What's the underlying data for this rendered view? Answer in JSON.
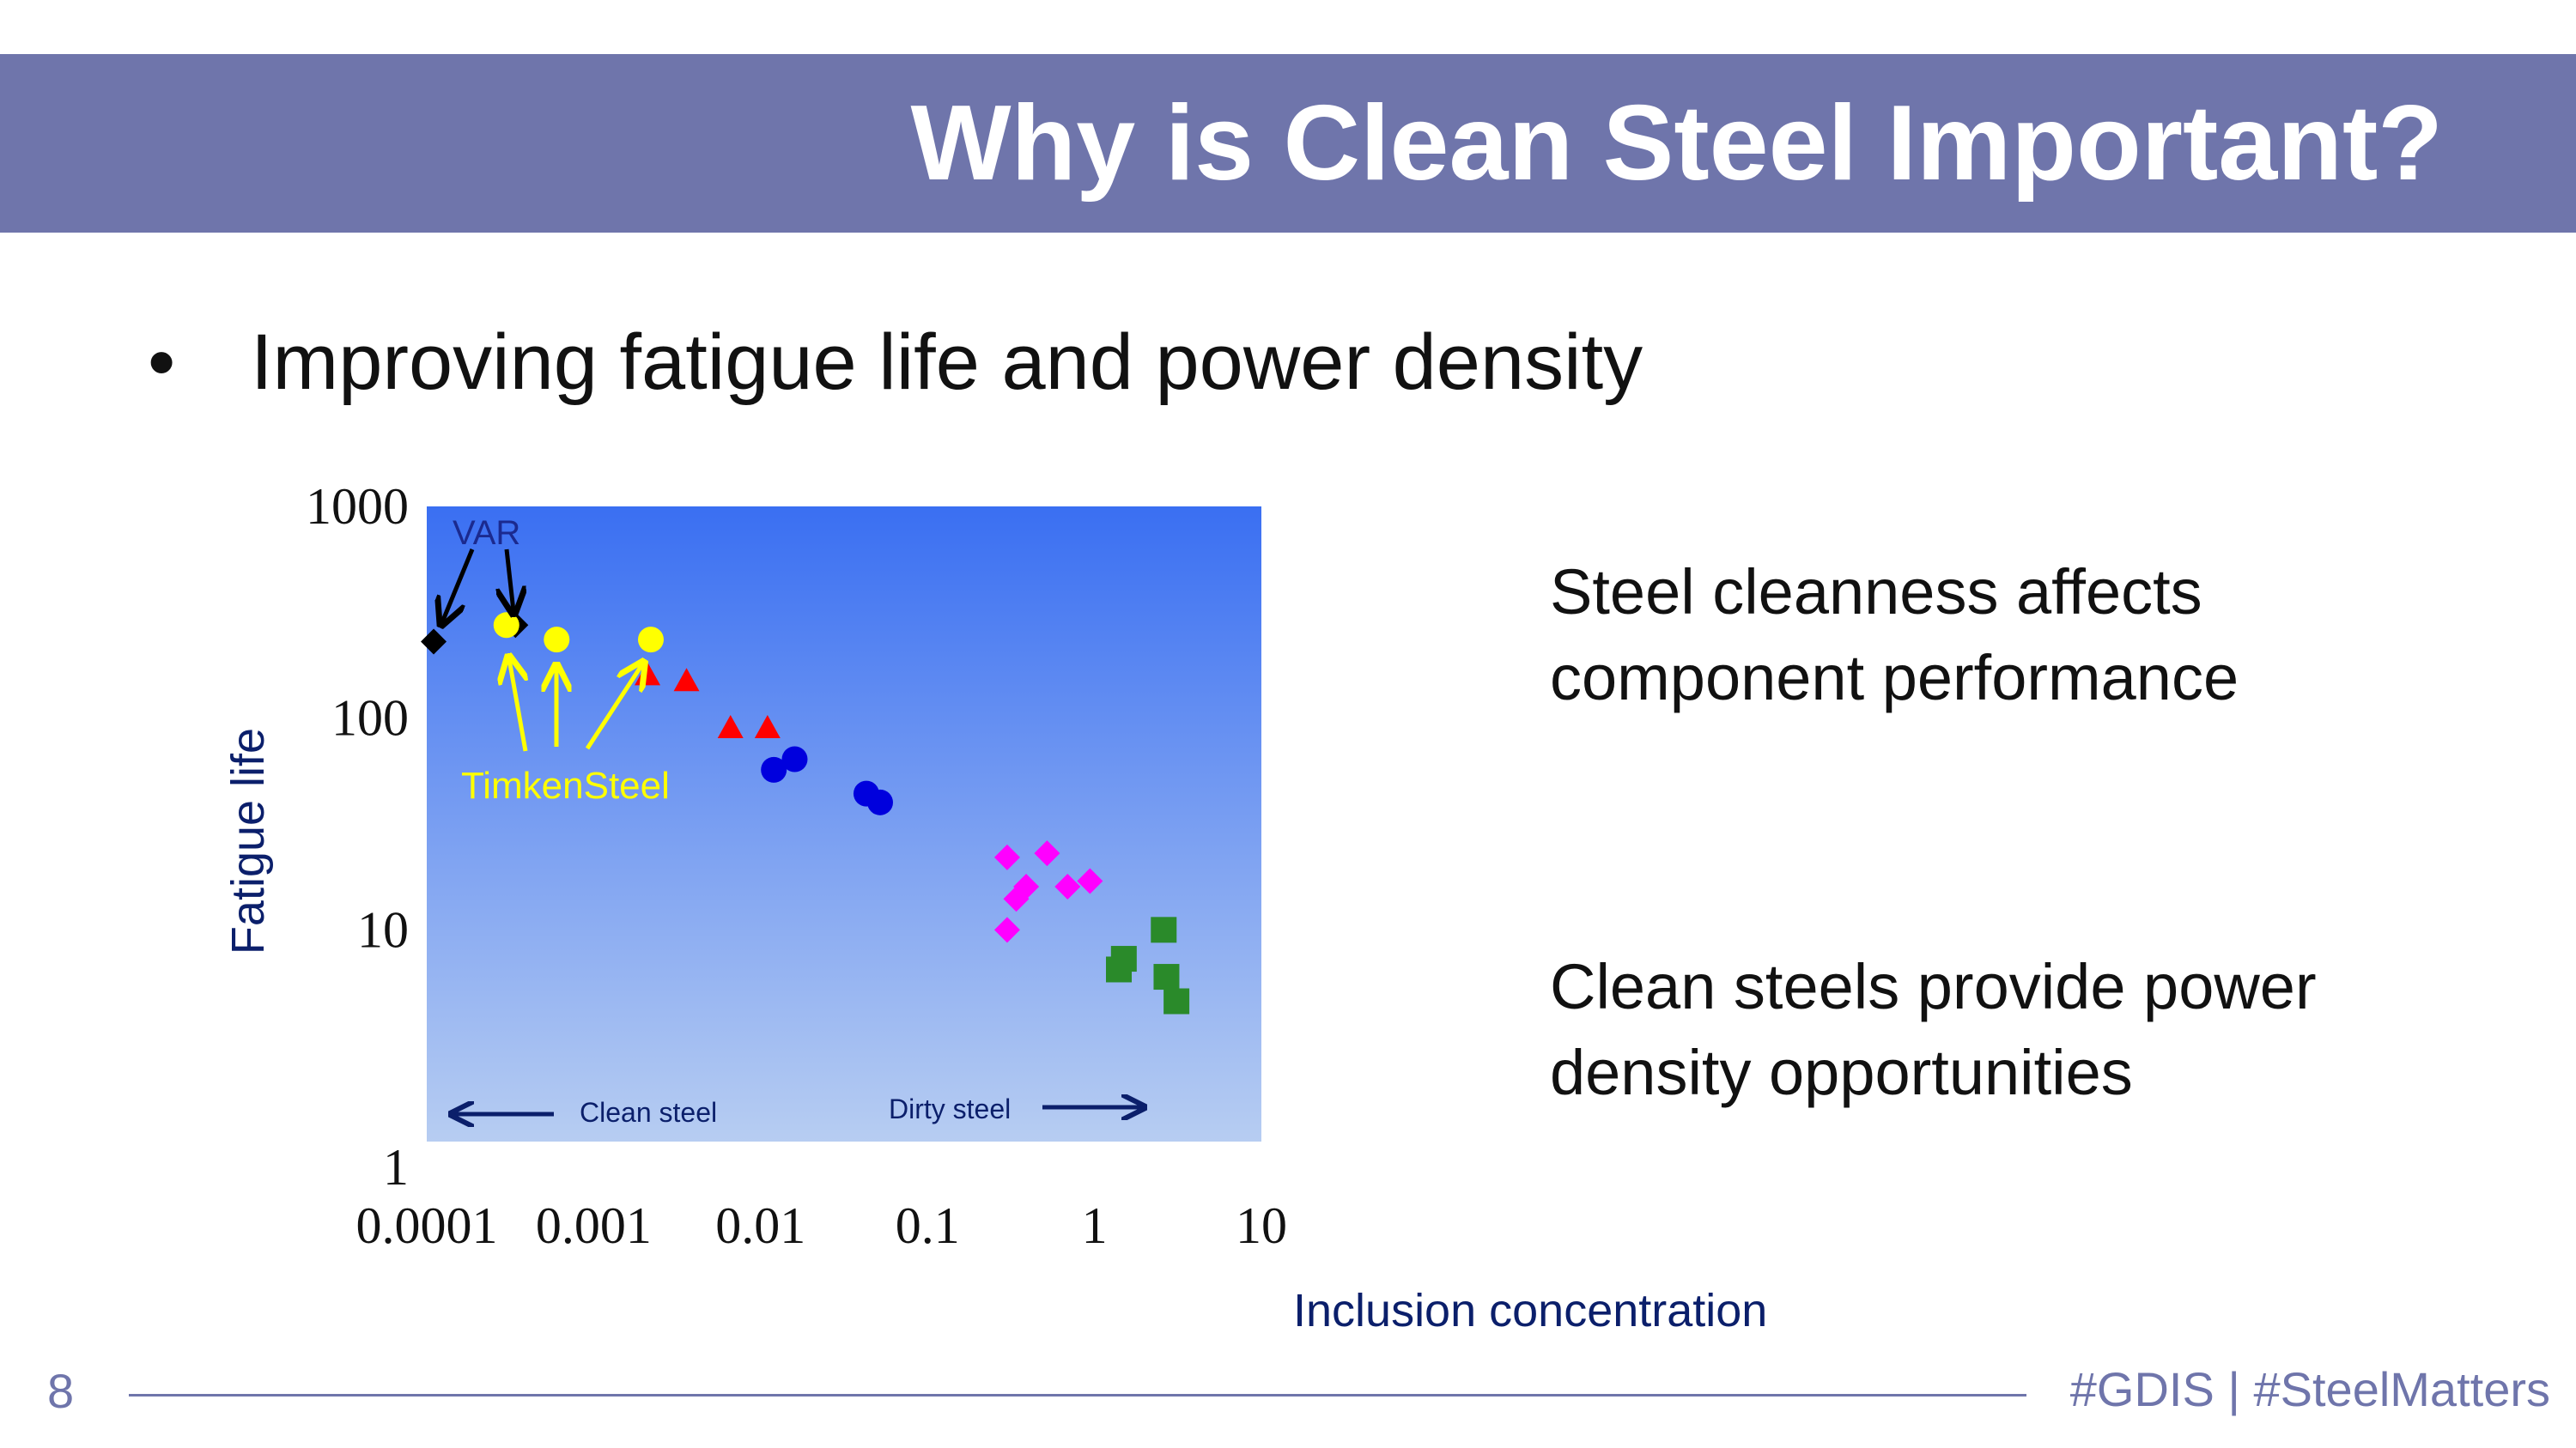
{
  "slide": {
    "title": "Why is Clean Steel Important?",
    "bullet": "Improving fatigue life and power density",
    "bullet_marker": "•",
    "points": [
      "Steel cleanness affects component performance",
      "Clean steels provide power density opportunities"
    ],
    "page_number": "8",
    "footer_tags": "#GDIS  | #SteelMatters",
    "colors": {
      "title_bar": "#6f75ab",
      "footer": "#6f75ab"
    }
  },
  "chart_data": {
    "type": "scatter",
    "xscale": "log",
    "yscale": "log",
    "xlim": [
      0.0001,
      10
    ],
    "ylim": [
      1,
      1000
    ],
    "xlabel": "Inclusion concentration",
    "ylabel": "Fatigue life",
    "xticks": [
      "0.0001",
      "0.001",
      "0.01",
      "0.1",
      "1",
      "10"
    ],
    "yticks": [
      "1000",
      "100",
      "10",
      "1"
    ],
    "annotations": {
      "var": "VAR",
      "timken": "TimkenSteel",
      "clean": "Clean steel",
      "dirty": "Dirty steel"
    },
    "series": [
      {
        "name": "VAR",
        "marker": "diamond",
        "color": "#000000",
        "points": [
          [
            0.00011,
            230
          ],
          [
            0.00034,
            275
          ]
        ]
      },
      {
        "name": "TimkenSteel",
        "marker": "circle",
        "color": "#ffff00",
        "points": [
          [
            0.0003,
            275
          ],
          [
            0.0006,
            235
          ],
          [
            0.0022,
            235
          ]
        ]
      },
      {
        "name": "red-triangles",
        "marker": "triangle",
        "color": "#ff0000",
        "points": [
          [
            0.0021,
            160
          ],
          [
            0.0036,
            150
          ],
          [
            0.0066,
            90
          ],
          [
            0.011,
            90
          ]
        ]
      },
      {
        "name": "blue-circles",
        "marker": "circle",
        "color": "#0000dd",
        "points": [
          [
            0.012,
            57
          ],
          [
            0.016,
            64
          ],
          [
            0.043,
            44
          ],
          [
            0.052,
            40
          ]
        ]
      },
      {
        "name": "magenta-diamonds",
        "marker": "diamond",
        "color": "#ff00ff",
        "points": [
          [
            0.3,
            22
          ],
          [
            0.52,
            23
          ],
          [
            0.34,
            14
          ],
          [
            0.39,
            16
          ],
          [
            0.69,
            16
          ],
          [
            0.94,
            17
          ],
          [
            0.3,
            10
          ]
        ]
      },
      {
        "name": "green-squares",
        "marker": "square",
        "color": "#2a8a2a",
        "points": [
          [
            1.5,
            7.3
          ],
          [
            1.4,
            6.5
          ],
          [
            2.6,
            10
          ],
          [
            2.7,
            6
          ],
          [
            3.1,
            4.6
          ]
        ]
      }
    ]
  }
}
